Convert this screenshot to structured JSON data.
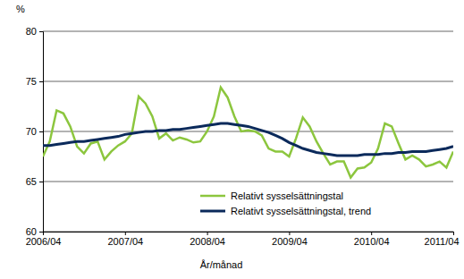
{
  "chart_data": {
    "type": "line",
    "y_label": "%",
    "x_label": "År/månad",
    "categories": [
      "2006/04",
      null,
      null,
      null,
      null,
      null,
      null,
      null,
      null,
      null,
      null,
      null,
      "2007/04",
      null,
      null,
      null,
      null,
      null,
      null,
      null,
      null,
      null,
      null,
      null,
      "2008/04",
      null,
      null,
      null,
      null,
      null,
      null,
      null,
      null,
      null,
      null,
      null,
      "2009/04",
      null,
      null,
      null,
      null,
      null,
      null,
      null,
      null,
      null,
      null,
      null,
      "2010/04",
      null,
      null,
      null,
      null,
      null,
      null,
      null,
      null,
      null,
      null,
      null,
      "2011/04"
    ],
    "series": [
      {
        "name": "Relativt sysselsättningstal",
        "color": "#8cc63e",
        "values": [
          67.5,
          69.0,
          72.1,
          71.8,
          70.5,
          68.5,
          67.8,
          68.8,
          69.0,
          67.2,
          68.0,
          68.6,
          69.0,
          69.8,
          73.5,
          72.8,
          71.5,
          69.3,
          69.8,
          69.1,
          69.4,
          69.2,
          68.9,
          69.0,
          70.0,
          71.5,
          74.4,
          73.4,
          71.5,
          70.0,
          70.1,
          70.0,
          69.6,
          68.3,
          68.0,
          68.0,
          67.5,
          69.3,
          71.4,
          70.5,
          69.0,
          67.8,
          66.7,
          67.0,
          67.0,
          65.4,
          66.3,
          66.4,
          66.9,
          68.3,
          70.8,
          70.5,
          68.8,
          67.2,
          67.6,
          67.2,
          66.5,
          66.7,
          67.0,
          66.4,
          68.0
        ]
      },
      {
        "name": "Relativt sysselsättningstal, trend",
        "color": "#0b2a5b",
        "values": [
          68.6,
          68.6,
          68.7,
          68.8,
          68.9,
          69.0,
          69.0,
          69.1,
          69.2,
          69.3,
          69.4,
          69.5,
          69.7,
          69.8,
          69.9,
          70.0,
          70.0,
          70.1,
          70.1,
          70.2,
          70.2,
          70.3,
          70.4,
          70.5,
          70.6,
          70.7,
          70.8,
          70.8,
          70.7,
          70.6,
          70.5,
          70.3,
          70.1,
          69.9,
          69.6,
          69.3,
          68.9,
          68.6,
          68.3,
          68.1,
          67.9,
          67.8,
          67.7,
          67.6,
          67.6,
          67.6,
          67.6,
          67.7,
          67.7,
          67.7,
          67.8,
          67.8,
          67.9,
          67.9,
          68.0,
          68.0,
          68.0,
          68.1,
          68.2,
          68.3,
          68.5
        ]
      }
    ],
    "ylim": [
      60,
      80
    ],
    "yticks": [
      60,
      65,
      70,
      75,
      80
    ],
    "grid": true,
    "legend": "lower right"
  }
}
